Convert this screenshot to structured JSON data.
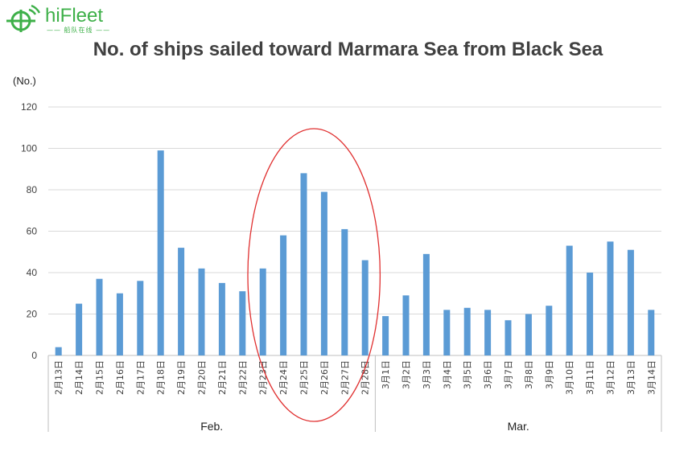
{
  "brand": {
    "name": "hiFleet",
    "tagline": "—— 船队在线 ——",
    "color": "#3eb049"
  },
  "chart_data": {
    "type": "bar",
    "title": "No. of ships sailed toward Marmara Sea from Black Sea",
    "ylabel": "(No.)",
    "xlabel": "",
    "ylim": [
      0,
      120
    ],
    "yticks": [
      0,
      20,
      40,
      60,
      80,
      100,
      120
    ],
    "grid": true,
    "bar_color": "#5b9bd5",
    "highlight_color": "#e03030",
    "categories": [
      "2月13日",
      "2月14日",
      "2月15日",
      "2月16日",
      "2月17日",
      "2月18日",
      "2月19日",
      "2月20日",
      "2月21日",
      "2月22日",
      "2月23日",
      "2月24日",
      "2月25日",
      "2月26日",
      "2月27日",
      "2月28日",
      "3月1日",
      "3月2日",
      "3月3日",
      "3月4日",
      "3月5日",
      "3月6日",
      "3月7日",
      "3月8日",
      "3月9日",
      "3月10日",
      "3月11日",
      "3月12日",
      "3月13日",
      "3月14日"
    ],
    "values": [
      4,
      25,
      37,
      30,
      36,
      99,
      52,
      42,
      35,
      31,
      42,
      58,
      88,
      79,
      61,
      46,
      19,
      29,
      49,
      22,
      23,
      22,
      17,
      20,
      24,
      53,
      40,
      55,
      51,
      22
    ],
    "groups": [
      {
        "label": "Feb.",
        "start": 0,
        "end": 15
      },
      {
        "label": "Mar.",
        "start": 16,
        "end": 29
      }
    ],
    "highlight_range": [
      10,
      15
    ]
  }
}
